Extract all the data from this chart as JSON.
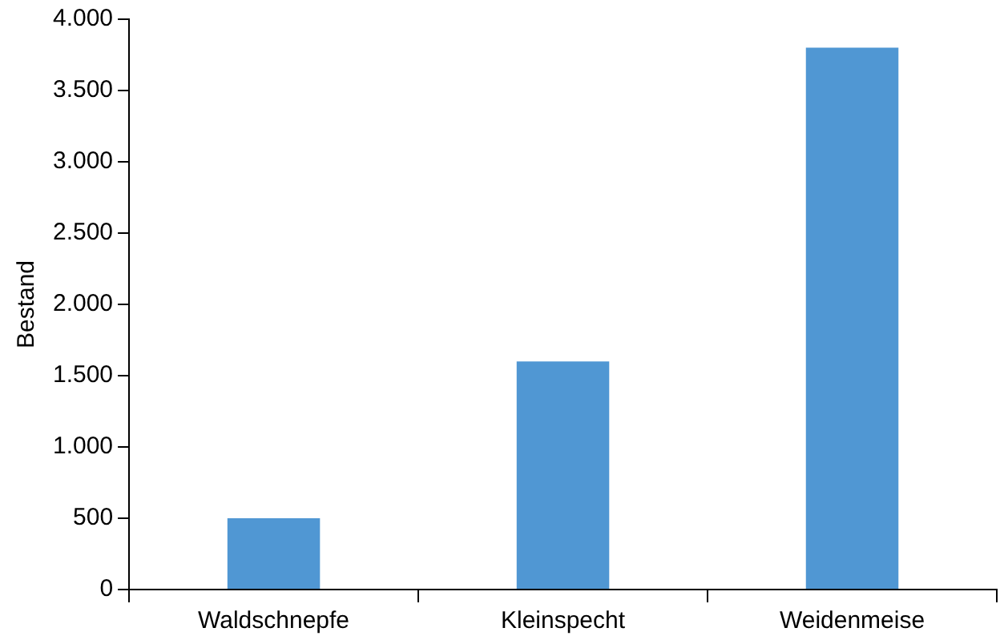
{
  "chart_data": {
    "type": "bar",
    "ylabel": "Bestand",
    "categories": [
      "Waldschnepfe",
      "Kleinspecht",
      "Weidenmeise"
    ],
    "values": [
      500,
      1600,
      3800
    ],
    "color": "#5097d3",
    "ylim": [
      0,
      4000
    ],
    "yticks": [
      0,
      500,
      {
        "value": 1000,
        "label": "1.000"
      },
      {
        "value": 1500,
        "label": "1.500"
      },
      {
        "value": 2000,
        "label": "2.000"
      },
      {
        "value": 2500,
        "label": "2.500"
      },
      {
        "value": 3000,
        "label": "3.000"
      },
      {
        "value": 3500,
        "label": "3.500"
      },
      {
        "value": 4000,
        "label": "4.000"
      }
    ],
    "grid": false,
    "legend": false
  }
}
